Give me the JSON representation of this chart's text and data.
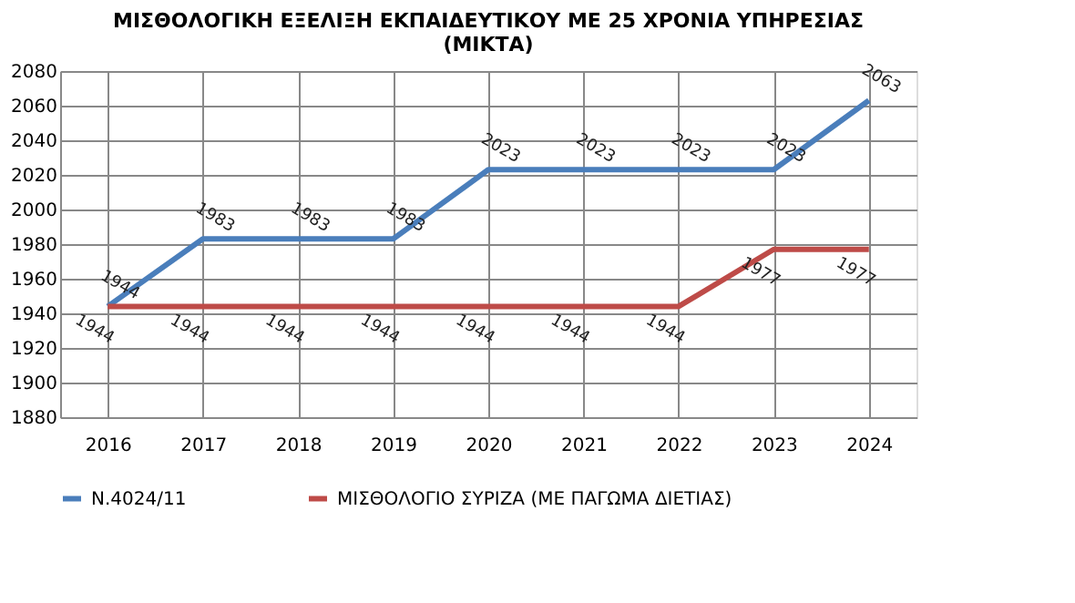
{
  "chart_data": {
    "type": "line",
    "title": "ΜΙΣΘΟΛΟΓΙΚΗ ΕΞΕΛΙΞΗ ΕΚΠΑΙΔΕΥΤΙΚΟΥ ΜΕ 25  ΧΡΟΝΙΑ ΥΠΗΡΕΣΙΑΣ\n(ΜΙΚΤΑ)",
    "categories": [
      "2016",
      "2017",
      "2018",
      "2019",
      "2020",
      "2021",
      "2022",
      "2023",
      "2024"
    ],
    "series": [
      {
        "name": "Ν.4024/11",
        "color": "#4a7ebb",
        "values": [
          1944,
          1983,
          1983,
          1983,
          2023,
          2023,
          2023,
          2023,
          2063
        ]
      },
      {
        "name": "ΜΙΣΘΟΛΟΓΙΟ ΣΥΡΙΖΑ (ΜΕ ΠΑΓΩΜΑ ΔΙΕΤΙΑΣ)",
        "color": "#be4b48",
        "values": [
          1944,
          1944,
          1944,
          1944,
          1944,
          1944,
          1944,
          1977,
          1977
        ]
      }
    ],
    "ylim": [
      1880,
      2080
    ],
    "yticks": [
      1880,
      1900,
      1920,
      1940,
      1960,
      1980,
      2000,
      2020,
      2040,
      2060,
      2080
    ],
    "grid": true,
    "legend": "bottom",
    "data_labels": true,
    "marker": "none",
    "line_style": "solid"
  }
}
